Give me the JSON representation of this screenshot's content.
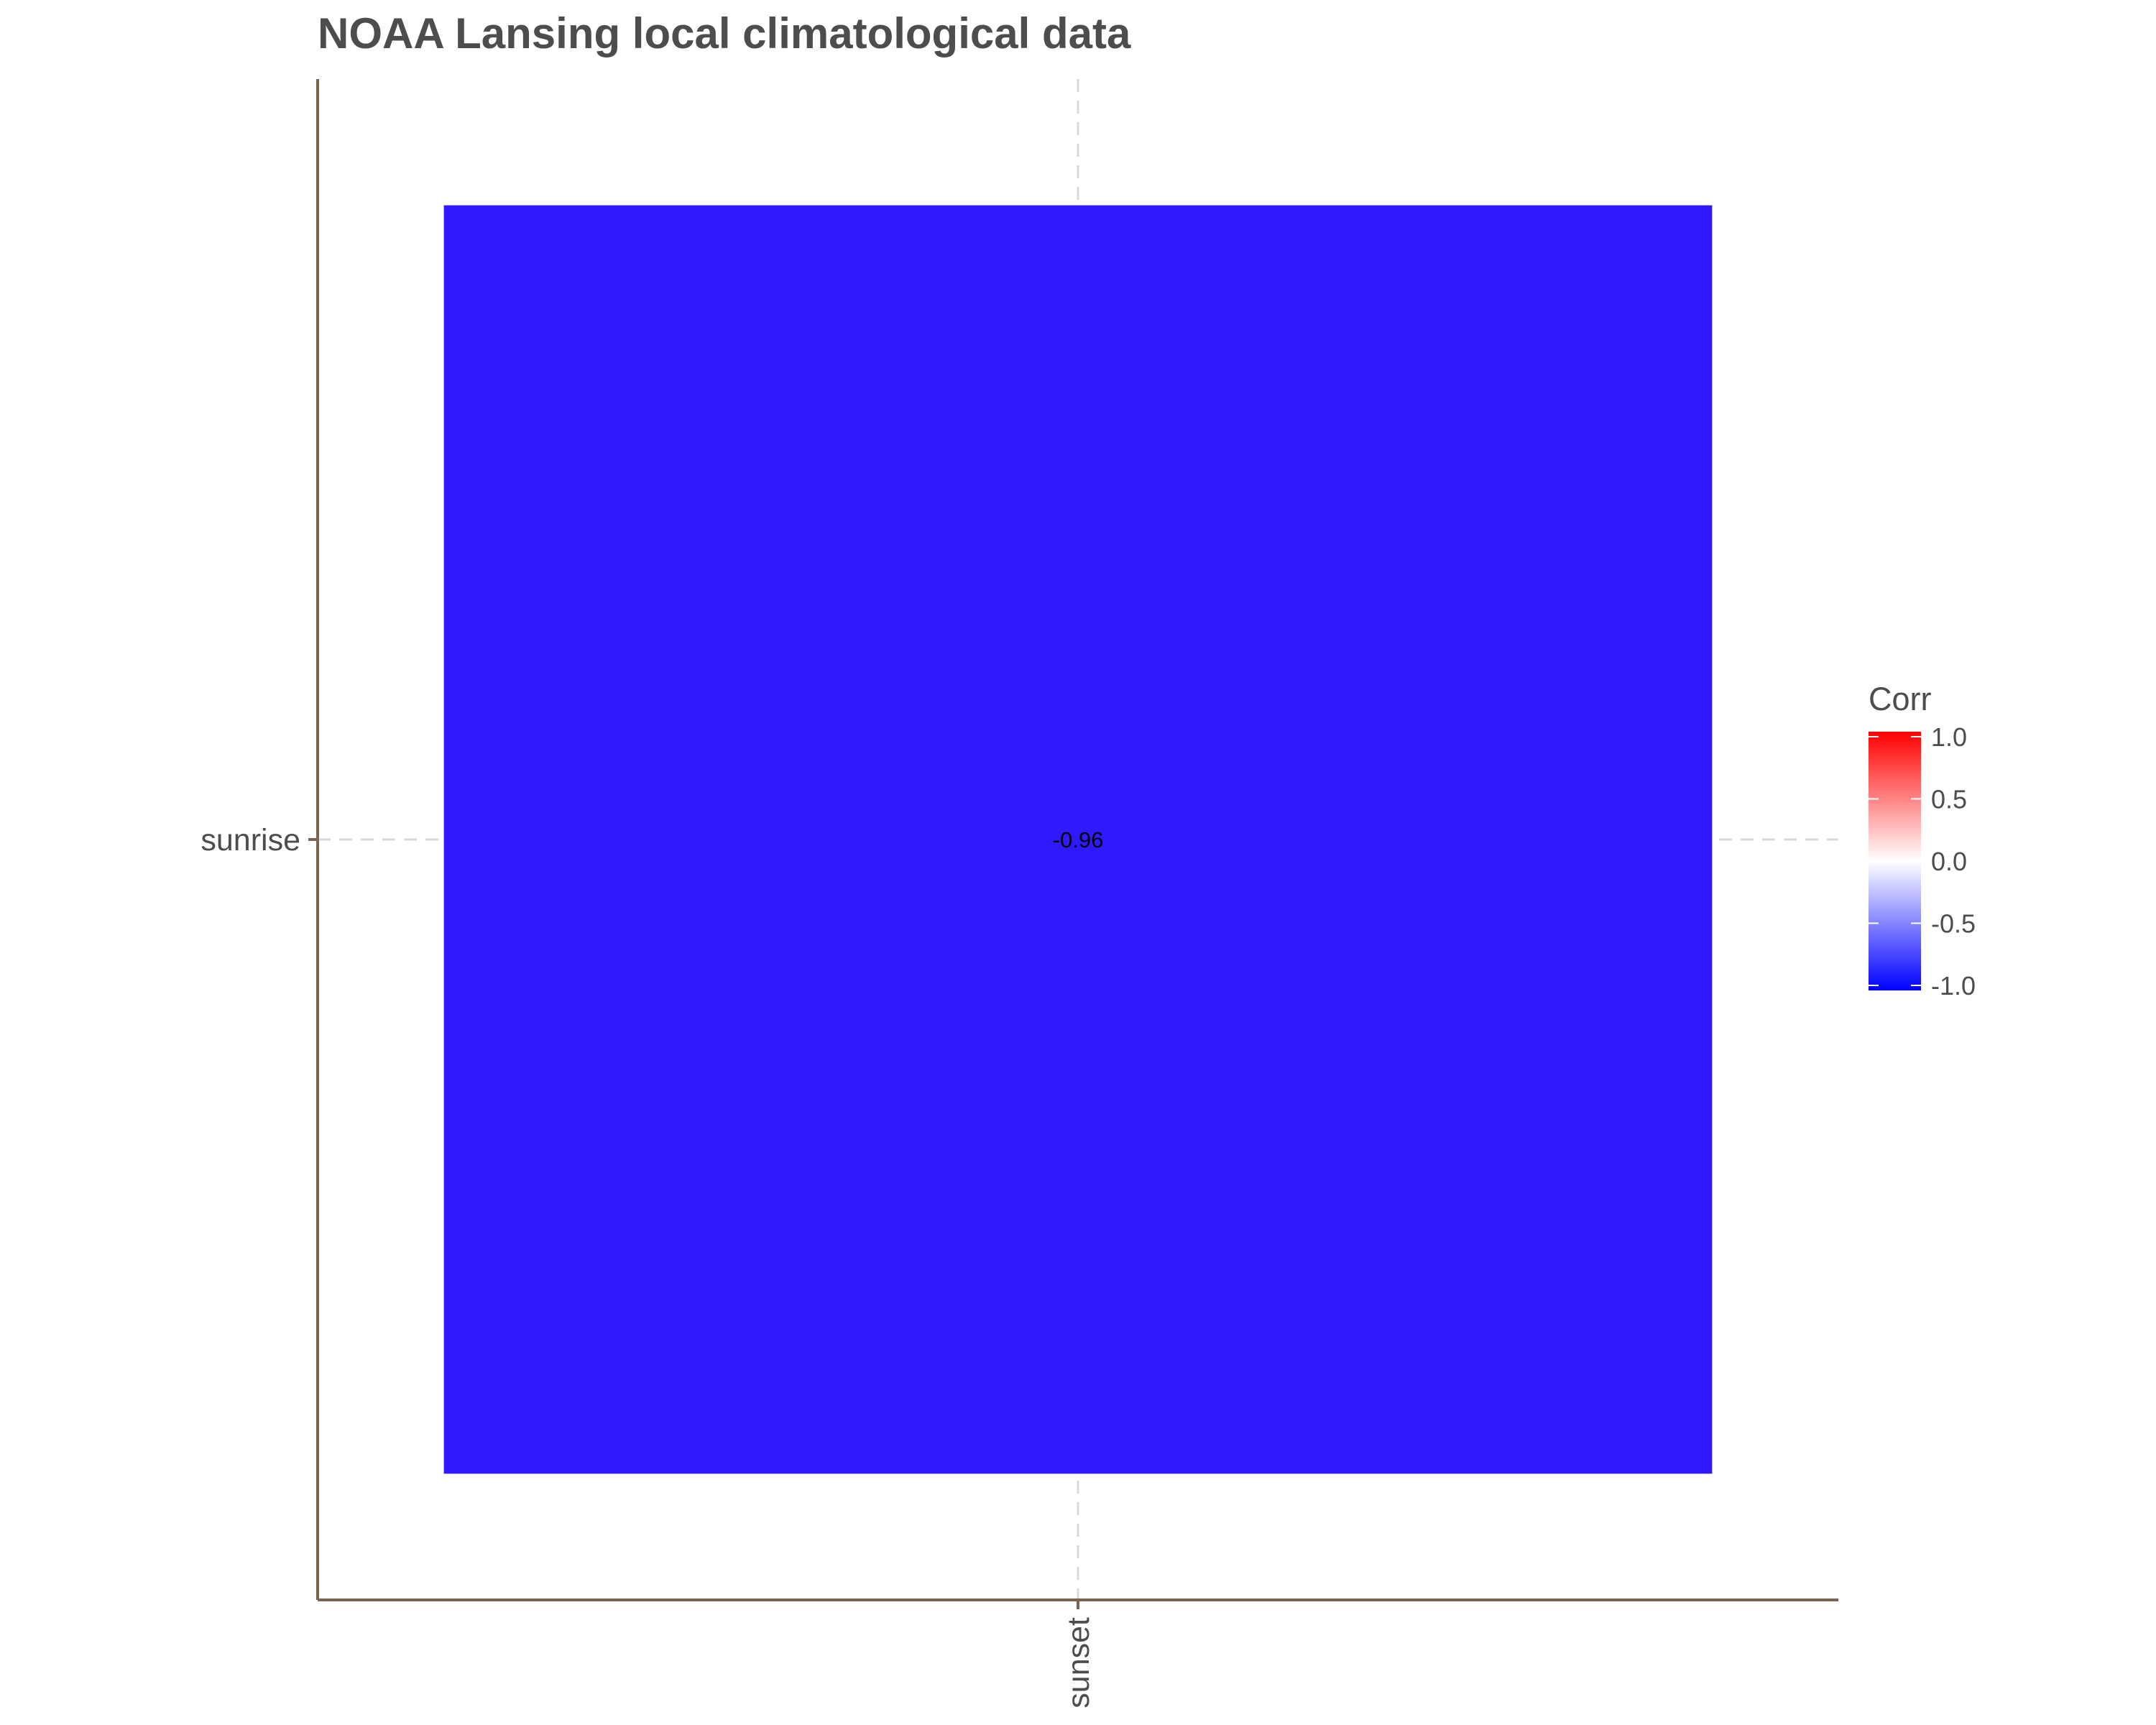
{
  "chart_data": {
    "type": "heatmap",
    "title": "NOAA Lansing local climatological data",
    "x_categories": [
      "sunset"
    ],
    "y_categories": [
      "sunrise"
    ],
    "cells": [
      {
        "x": "sunset",
        "y": "sunrise",
        "value": -0.96,
        "label": "-0.96"
      }
    ],
    "grid": true,
    "legend": {
      "title": "Corr",
      "position": "right",
      "limits": [
        -1,
        1
      ],
      "ticks": [
        1.0,
        0.5,
        0.0,
        -0.5,
        -1.0
      ],
      "tick_labels": [
        "1.0",
        "0.5",
        "0.0",
        "-0.5",
        "-1.0"
      ],
      "colors": {
        "low": "#0000ff",
        "mid": "#ffffff",
        "high": "#ff0000"
      }
    },
    "colors": {
      "cell_fill": "#3019ff",
      "axis_line": "#7a6450",
      "gridline": "#d9d9d9",
      "text": "#4d4d4d"
    }
  }
}
